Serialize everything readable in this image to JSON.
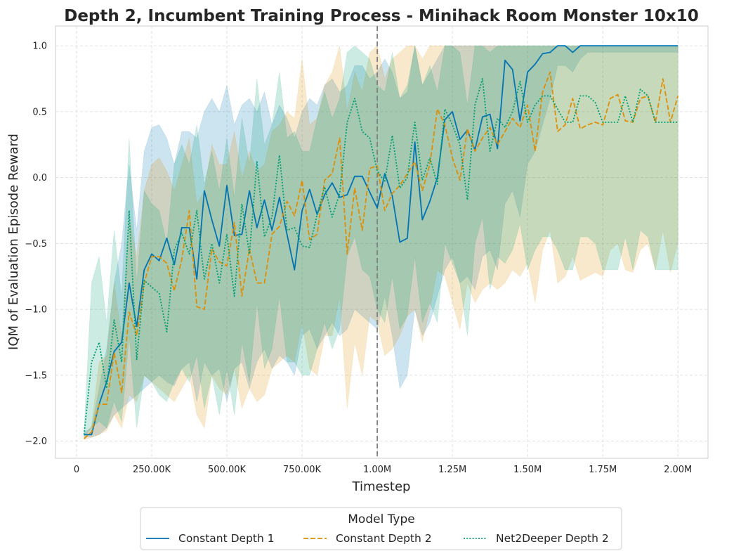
{
  "chart_data": {
    "type": "line",
    "title": "Depth 2, Incumbent Training Process - Minihack Room Monster 10x10",
    "xlabel": "Timestep",
    "ylabel": "IQM of Evaluation Episode Reward",
    "xlim": [
      -70000,
      2100000
    ],
    "ylim": [
      -2.13,
      1.15
    ],
    "x_ticks": [
      0,
      250000,
      500000,
      750000,
      1000000,
      1250000,
      1500000,
      1750000,
      2000000
    ],
    "x_tick_labels": [
      "0",
      "250.00K",
      "500.00K",
      "750.00K",
      "1.00M",
      "1.25M",
      "1.50M",
      "1.75M",
      "2.00M"
    ],
    "y_ticks": [
      -2.0,
      -1.5,
      -1.0,
      -0.5,
      0.0,
      0.5,
      1.0
    ],
    "y_tick_labels": [
      "−2.0",
      "−1.5",
      "−1.0",
      "−0.5",
      "0.0",
      "0.5",
      "1.0"
    ],
    "grid": true,
    "vline": {
      "x": 1000000,
      "color": "#808080",
      "style": "dashed"
    },
    "legend": {
      "title": "Model Type",
      "placement": "bottom-center, outside"
    },
    "x": [
      25000,
      50000,
      75000,
      100000,
      125000,
      150000,
      175000,
      200000,
      225000,
      250000,
      275000,
      300000,
      325000,
      350000,
      375000,
      400000,
      425000,
      450000,
      475000,
      500000,
      525000,
      550000,
      575000,
      600000,
      625000,
      650000,
      675000,
      700000,
      725000,
      750000,
      775000,
      800000,
      825000,
      850000,
      875000,
      900000,
      925000,
      950000,
      975000,
      1000000,
      1025000,
      1050000,
      1075000,
      1100000,
      1125000,
      1150000,
      1175000,
      1200000,
      1225000,
      1250000,
      1275000,
      1300000,
      1325000,
      1350000,
      1375000,
      1400000,
      1425000,
      1450000,
      1475000,
      1500000,
      1525000,
      1550000,
      1575000,
      1600000,
      1625000,
      1650000,
      1675000,
      1700000,
      1725000,
      1750000,
      1775000,
      1800000,
      1825000,
      1850000,
      1875000,
      1900000,
      1925000,
      1950000,
      1975000,
      2000000
    ],
    "series": [
      {
        "name": "Constant Depth 1",
        "color": "#0173b2",
        "dash": "solid",
        "values": [
          -1.95,
          -1.95,
          -1.72,
          -1.55,
          -1.32,
          -1.25,
          -0.8,
          -1.13,
          -0.7,
          -0.58,
          -0.63,
          -0.46,
          -0.66,
          -0.38,
          -0.38,
          -0.77,
          -0.1,
          -0.32,
          -0.52,
          -0.06,
          -0.44,
          -0.43,
          -0.1,
          -0.38,
          -0.17,
          -0.4,
          -0.15,
          -0.43,
          -0.7,
          -0.25,
          -0.09,
          -0.28,
          -0.13,
          -0.04,
          -0.15,
          -0.13,
          0.01,
          0.01,
          -0.11,
          -0.23,
          0.03,
          -0.14,
          -0.49,
          -0.46,
          0.27,
          -0.32,
          -0.18,
          0.0,
          0.44,
          0.5,
          0.29,
          0.36,
          0.21,
          0.46,
          0.48,
          0.22,
          0.89,
          0.82,
          0.43,
          0.8,
          0.86,
          0.94,
          0.95,
          1.0,
          1.0,
          0.95,
          1.0,
          1.0,
          1.0,
          1.0,
          1.0,
          1.0,
          1.0,
          1.0,
          1.0,
          1.0,
          1.0,
          1.0,
          1.0,
          1.0
        ],
        "lower": [
          -1.97,
          -1.97,
          -1.95,
          -1.9,
          -1.8,
          -1.75,
          -1.7,
          -1.65,
          -1.6,
          -1.55,
          -1.5,
          -1.55,
          -1.58,
          -1.45,
          -1.4,
          -1.7,
          -1.4,
          -1.5,
          -1.45,
          -1.7,
          -1.45,
          -1.4,
          -1.6,
          -1.4,
          -1.3,
          -1.45,
          -1.35,
          -1.4,
          -1.5,
          -1.2,
          -1.15,
          -1.3,
          -1.2,
          -1.1,
          -1.2,
          -1.15,
          -1.0,
          -1.05,
          -1.1,
          -1.15,
          -0.9,
          -1.2,
          -1.6,
          -1.5,
          -1.0,
          -1.2,
          -1.1,
          -0.9,
          -0.7,
          -0.6,
          -0.8,
          -0.75,
          -0.85,
          -0.6,
          -0.55,
          -0.7,
          -0.2,
          -0.1,
          -0.3,
          0.1,
          0.2,
          0.4,
          0.6,
          0.85,
          0.85,
          0.8,
          0.9,
          0.95,
          0.95,
          0.95,
          0.95,
          0.95,
          0.95,
          0.95,
          0.95,
          0.95,
          0.95,
          0.95,
          0.95,
          0.95
        ],
        "upper": [
          -1.93,
          -1.9,
          -1.6,
          -1.3,
          -0.8,
          -0.5,
          0.1,
          -0.4,
          0.2,
          0.38,
          0.4,
          0.3,
          0.1,
          0.35,
          0.35,
          0.3,
          0.5,
          0.6,
          0.5,
          0.7,
          0.4,
          0.55,
          0.6,
          0.5,
          0.65,
          0.4,
          0.55,
          0.45,
          0.3,
          0.5,
          0.6,
          0.55,
          0.7,
          0.75,
          0.65,
          0.7,
          0.85,
          0.85,
          0.75,
          0.8,
          0.9,
          0.8,
          0.6,
          0.65,
          1.0,
          0.7,
          0.8,
          0.9,
          1.0,
          1.0,
          1.0,
          1.0,
          1.0,
          1.0,
          1.0,
          1.0,
          1.0,
          1.0,
          1.0,
          1.0,
          1.0,
          1.0,
          1.0,
          1.0,
          1.0,
          1.0,
          1.0,
          1.0,
          1.0,
          1.0,
          1.0,
          1.0,
          1.0,
          1.0,
          1.0,
          1.0,
          1.0,
          1.0,
          1.0,
          1.0
        ]
      },
      {
        "name": "Constant Depth 2",
        "color": "#de8f05",
        "dash": "dashed",
        "values": [
          -1.98,
          -1.93,
          -1.72,
          -1.72,
          -1.33,
          -1.63,
          -1.02,
          -1.2,
          -0.8,
          -0.6,
          -0.6,
          -0.65,
          -0.86,
          -0.62,
          -0.25,
          -0.98,
          -1.0,
          -0.54,
          -0.64,
          -0.67,
          -0.34,
          -0.9,
          -0.54,
          -0.8,
          -0.8,
          -0.43,
          -0.37,
          -0.18,
          -0.29,
          -0.02,
          -0.47,
          -0.43,
          -0.02,
          0.03,
          0.3,
          -0.58,
          -0.08,
          -0.4,
          0.07,
          0.09,
          -0.25,
          -0.12,
          -0.06,
          0.03,
          0.12,
          -0.1,
          0.1,
          0.52,
          0.4,
          0.15,
          -0.02,
          0.37,
          0.2,
          0.3,
          0.38,
          0.25,
          0.35,
          0.45,
          0.38,
          0.55,
          0.2,
          0.65,
          0.8,
          0.35,
          0.4,
          0.6,
          0.37,
          0.4,
          0.42,
          0.4,
          0.6,
          0.63,
          0.43,
          0.42,
          0.6,
          0.62,
          0.42,
          0.75,
          0.42,
          0.62
        ],
        "lower": [
          -1.99,
          -1.97,
          -1.95,
          -1.92,
          -1.8,
          -1.9,
          -1.65,
          -1.7,
          -1.5,
          -1.55,
          -1.6,
          -1.65,
          -1.7,
          -1.6,
          -1.5,
          -1.8,
          -1.9,
          -1.5,
          -1.6,
          -1.65,
          -1.45,
          -1.75,
          -1.6,
          -1.7,
          -1.65,
          -1.45,
          -1.4,
          -1.35,
          -1.4,
          -1.1,
          -1.45,
          -1.5,
          -1.2,
          -1.2,
          -0.9,
          -1.75,
          -1.25,
          -1.5,
          -1.05,
          -1.1,
          -1.35,
          -1.3,
          -1.2,
          -1.05,
          -1.0,
          -1.25,
          -1.0,
          -0.7,
          -0.75,
          -0.95,
          -1.15,
          -0.8,
          -0.95,
          -0.85,
          -0.8,
          -0.85,
          -0.8,
          -0.7,
          -0.75,
          -0.65,
          -0.95,
          -0.55,
          -0.4,
          -0.8,
          -0.75,
          -0.6,
          -0.78,
          -0.75,
          -0.72,
          -0.75,
          -0.55,
          -0.5,
          -0.7,
          -0.72,
          -0.55,
          -0.5,
          -0.7,
          -0.4,
          -0.72,
          -0.5
        ],
        "upper": [
          -1.96,
          -1.88,
          -1.4,
          -1.35,
          -0.8,
          -1.2,
          -0.3,
          -0.6,
          -0.1,
          0.1,
          0.15,
          0.05,
          -0.1,
          0.1,
          0.3,
          -0.2,
          -0.1,
          0.25,
          0.1,
          0.1,
          0.35,
          0.0,
          0.2,
          0.05,
          0.1,
          0.35,
          0.4,
          0.5,
          0.45,
          0.9,
          0.4,
          0.45,
          0.7,
          0.8,
          1.0,
          0.5,
          0.8,
          0.65,
          0.95,
          1.0,
          0.75,
          0.9,
          0.95,
          1.0,
          1.0,
          0.9,
          1.0,
          1.0,
          1.0,
          1.0,
          1.0,
          1.0,
          1.0,
          1.0,
          1.0,
          1.0,
          1.0,
          1.0,
          1.0,
          1.0,
          1.0,
          1.0,
          1.0,
          1.0,
          1.0,
          1.0,
          1.0,
          1.0,
          1.0,
          1.0,
          1.0,
          1.0,
          1.0,
          1.0,
          1.0,
          1.0,
          1.0,
          1.0,
          1.0,
          1.0
        ]
      },
      {
        "name": "Net2Deeper Depth 2",
        "color": "#029e73",
        "dash": "dotted",
        "values": [
          -1.95,
          -1.4,
          -1.25,
          -1.6,
          -1.08,
          -1.4,
          -0.25,
          -1.38,
          -0.78,
          -0.83,
          -0.88,
          -1.17,
          -0.55,
          -0.42,
          -0.58,
          -0.25,
          -0.77,
          -0.5,
          -0.8,
          -0.43,
          -0.9,
          -0.2,
          -0.58,
          0.12,
          -0.45,
          -0.3,
          0.17,
          -0.4,
          -0.38,
          -0.52,
          -0.53,
          -0.28,
          -0.07,
          -0.3,
          -0.12,
          0.42,
          0.6,
          0.35,
          0.3,
          0.05,
          -0.03,
          0.32,
          -0.08,
          0.0,
          0.42,
          -0.02,
          0.15,
          -0.05,
          0.52,
          0.4,
          0.25,
          -0.17,
          0.55,
          0.75,
          0.2,
          0.45,
          0.38,
          0.5,
          0.73,
          0.42,
          0.55,
          0.62,
          0.62,
          0.52,
          0.42,
          0.42,
          0.62,
          0.62,
          0.57,
          0.42,
          0.42,
          0.42,
          0.62,
          0.42,
          0.67,
          0.62,
          0.42,
          0.42,
          0.42,
          0.42
        ],
        "lower": [
          -1.96,
          -1.9,
          -1.85,
          -1.9,
          -1.7,
          -1.85,
          -1.2,
          -1.9,
          -1.5,
          -1.55,
          -1.65,
          -1.7,
          -1.55,
          -1.45,
          -1.55,
          -1.35,
          -1.75,
          -1.5,
          -1.8,
          -1.45,
          -1.8,
          -1.25,
          -1.55,
          -0.95,
          -1.45,
          -1.3,
          -0.9,
          -1.4,
          -1.4,
          -1.5,
          -1.5,
          -1.3,
          -1.1,
          -1.3,
          -1.15,
          -0.6,
          -0.45,
          -0.7,
          -0.75,
          -1.0,
          -1.1,
          -0.75,
          -1.15,
          -1.05,
          -0.6,
          -1.1,
          -0.95,
          -1.1,
          -0.5,
          -0.65,
          -0.8,
          -1.2,
          -0.5,
          -0.3,
          -0.85,
          -0.6,
          -0.65,
          -0.55,
          -0.35,
          -0.7,
          -0.55,
          -0.45,
          -0.45,
          -0.55,
          -0.7,
          -0.7,
          -0.45,
          -0.45,
          -0.5,
          -0.7,
          -0.7,
          -0.7,
          -0.45,
          -0.7,
          -0.4,
          -0.45,
          -0.7,
          -0.7,
          -0.7,
          -0.7
        ],
        "upper": [
          -1.92,
          -0.8,
          -0.6,
          -1.1,
          -0.4,
          -0.9,
          0.3,
          -0.8,
          -0.1,
          -0.2,
          -0.25,
          -0.5,
          0.1,
          0.25,
          0.1,
          0.4,
          -0.05,
          0.2,
          -0.1,
          0.3,
          -0.15,
          0.45,
          0.1,
          0.75,
          0.25,
          0.4,
          0.8,
          0.3,
          0.35,
          0.2,
          0.2,
          0.45,
          0.65,
          0.45,
          0.6,
          0.95,
          1.0,
          0.95,
          0.9,
          0.7,
          0.65,
          0.95,
          0.6,
          0.7,
          1.0,
          0.7,
          0.85,
          0.65,
          1.0,
          1.0,
          0.95,
          0.55,
          1.0,
          1.0,
          0.95,
          1.0,
          1.0,
          1.0,
          1.0,
          1.0,
          1.0,
          1.0,
          1.0,
          1.0,
          1.0,
          1.0,
          1.0,
          1.0,
          1.0,
          1.0,
          1.0,
          1.0,
          1.0,
          1.0,
          1.0,
          1.0,
          1.0,
          1.0,
          1.0,
          1.0
        ]
      }
    ]
  }
}
